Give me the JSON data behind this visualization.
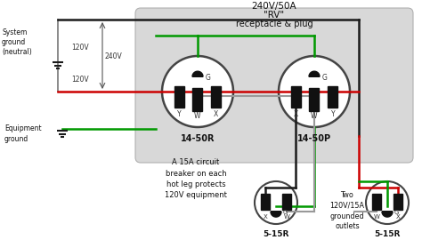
{
  "title_line1": "240V/50A",
  "title_line2": "\"RV\"",
  "title_line3": "receptacle & plug",
  "bg_color": "#f2f2f2",
  "white_bg": "#ffffff",
  "wire_black": "#1a1a1a",
  "wire_red": "#cc0000",
  "wire_green": "#009900",
  "wire_gray": "#999999",
  "text_system_ground": "System\nground\n(neutral)",
  "text_equipment_ground": "Equipment\nground",
  "text_120V_top": "120V",
  "text_120V_bot": "120V",
  "text_240V": "240V",
  "text_circuit_breaker": "A 15A circuit\nbreaker on each\nhot leg protects\n120V equipment",
  "text_two_outlets": "Two\n120V/15A\ngrounded\noutlets",
  "label_14_50R": "14-50R",
  "label_14_50P": "14-50P",
  "label_5_15R": "5-15R"
}
